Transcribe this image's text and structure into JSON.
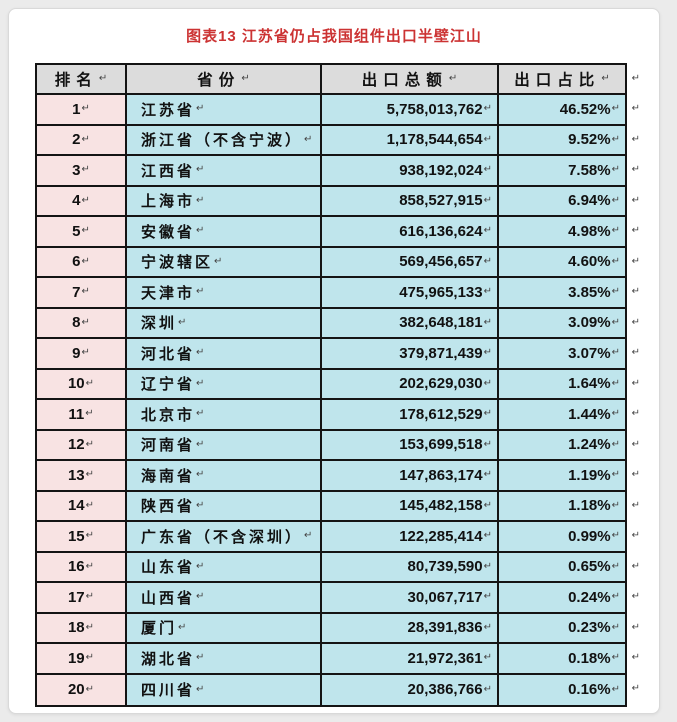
{
  "page": {
    "background": "#ebebeb",
    "card_background": "#ffffff"
  },
  "colors": {
    "title": "#cc3333",
    "border": "#141414",
    "header_bg": "#dcdcdc",
    "rank_bg": "#f8e3e3",
    "data_bg": "#bfe5ec",
    "text": "#111111",
    "mark": "#444444"
  },
  "marks": {
    "paragraph": "↵"
  },
  "chart_data": {
    "type": "table",
    "title": "图表13  江苏省仍占我国组件出口半壁江山",
    "columns": [
      "排名",
      "省份",
      "出口总额",
      "出口占比"
    ],
    "rows": [
      {
        "rank": "1",
        "province": "江苏省",
        "export_total": "5,758,013,762",
        "export_share": "46.52%"
      },
      {
        "rank": "2",
        "province": "浙江省（不含宁波）",
        "export_total": "1,178,544,654",
        "export_share": "9.52%"
      },
      {
        "rank": "3",
        "province": "江西省",
        "export_total": "938,192,024",
        "export_share": "7.58%"
      },
      {
        "rank": "4",
        "province": "上海市",
        "export_total": "858,527,915",
        "export_share": "6.94%"
      },
      {
        "rank": "5",
        "province": "安徽省",
        "export_total": "616,136,624",
        "export_share": "4.98%"
      },
      {
        "rank": "6",
        "province": "宁波辖区",
        "export_total": "569,456,657",
        "export_share": "4.60%"
      },
      {
        "rank": "7",
        "province": "天津市",
        "export_total": "475,965,133",
        "export_share": "3.85%"
      },
      {
        "rank": "8",
        "province": "深圳",
        "export_total": "382,648,181",
        "export_share": "3.09%"
      },
      {
        "rank": "9",
        "province": "河北省",
        "export_total": "379,871,439",
        "export_share": "3.07%"
      },
      {
        "rank": "10",
        "province": "辽宁省",
        "export_total": "202,629,030",
        "export_share": "1.64%"
      },
      {
        "rank": "11",
        "province": "北京市",
        "export_total": "178,612,529",
        "export_share": "1.44%"
      },
      {
        "rank": "12",
        "province": "河南省",
        "export_total": "153,699,518",
        "export_share": "1.24%"
      },
      {
        "rank": "13",
        "province": "海南省",
        "export_total": "147,863,174",
        "export_share": "1.19%"
      },
      {
        "rank": "14",
        "province": "陕西省",
        "export_total": "145,482,158",
        "export_share": "1.18%"
      },
      {
        "rank": "15",
        "province": "广东省（不含深圳）",
        "export_total": "122,285,414",
        "export_share": "0.99%"
      },
      {
        "rank": "16",
        "province": "山东省",
        "export_total": "80,739,590",
        "export_share": "0.65%"
      },
      {
        "rank": "17",
        "province": "山西省",
        "export_total": "30,067,717",
        "export_share": "0.24%"
      },
      {
        "rank": "18",
        "province": "厦门",
        "export_total": "28,391,836",
        "export_share": "0.23%"
      },
      {
        "rank": "19",
        "province": "湖北省",
        "export_total": "21,972,361",
        "export_share": "0.18%"
      },
      {
        "rank": "20",
        "province": "四川省",
        "export_total": "20,386,766",
        "export_share": "0.16%"
      }
    ]
  }
}
